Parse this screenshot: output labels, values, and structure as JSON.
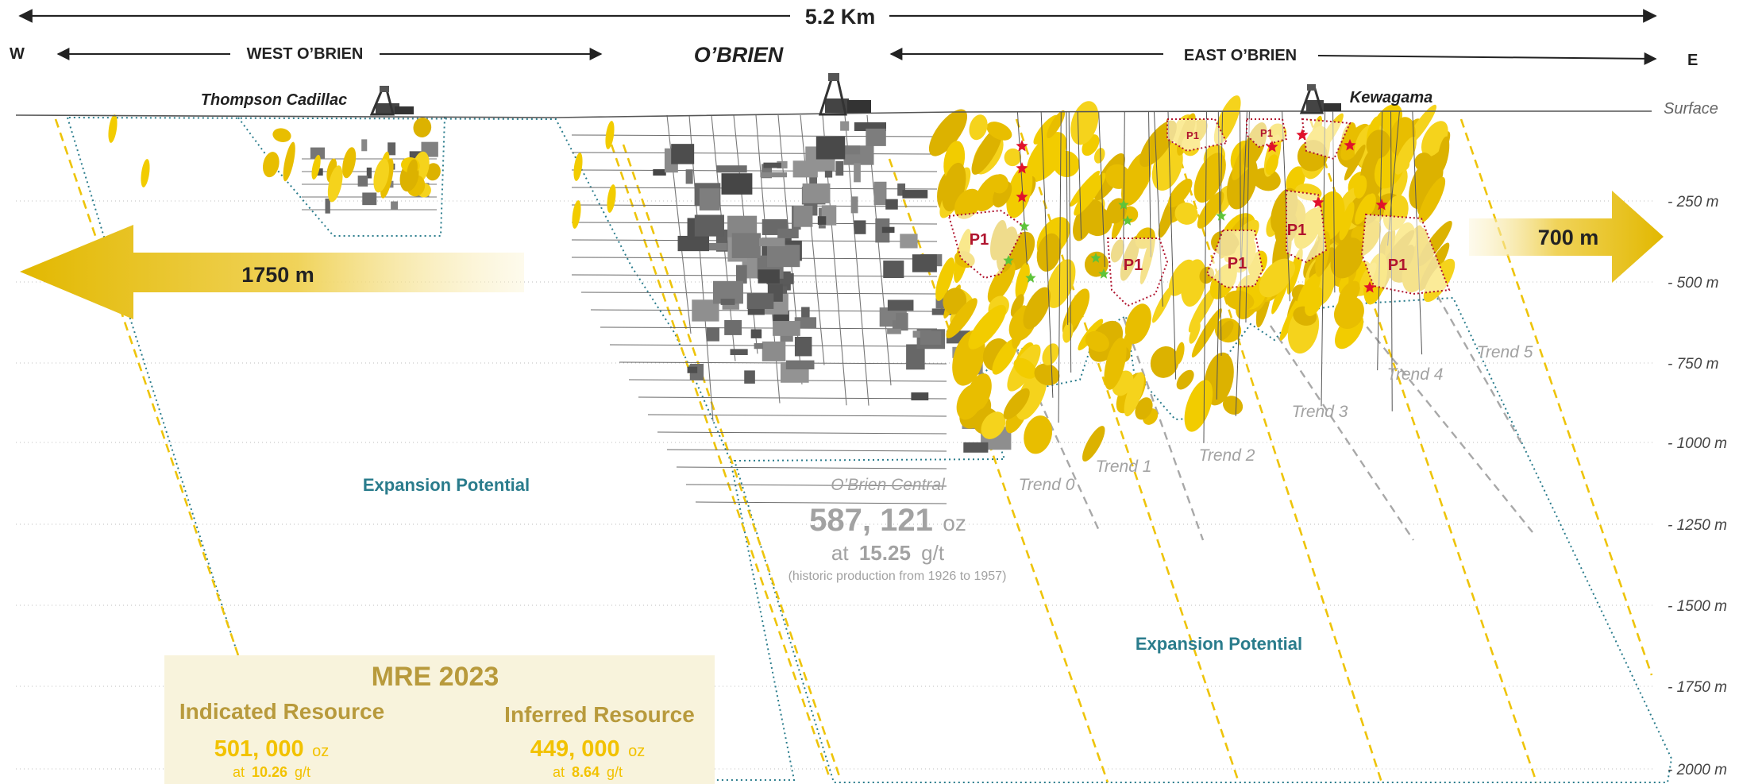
{
  "header": {
    "total_width": "5.2 Km",
    "west_end": "W",
    "east_end": "E",
    "west_zone": "WEST O’BRIEN",
    "central_zone": "O’BRIEN",
    "east_zone": "EAST O’BRIEN"
  },
  "headframes": {
    "thompson": "Thompson Cadillac",
    "kewagama": "Kewagama"
  },
  "depth_axis": {
    "surface": "Surface",
    "ticks": [
      "- 250 m",
      "- 500 m",
      "- 750 m",
      "- 1000 m",
      "- 1250 m",
      "- 1500 m",
      "- 1750 m",
      "- 2000 m"
    ]
  },
  "arrows": {
    "west_extent": "1750 m",
    "east_extent": "700 m"
  },
  "zones": {
    "expansion_west": "Expansion Potential",
    "expansion_east": "Expansion Potential",
    "p1_label": "P1"
  },
  "trends": [
    "Trend 0",
    "Trend 1",
    "Trend 2",
    "Trend 3",
    "Trend 4",
    "Trend 5"
  ],
  "obrien_central": {
    "title": "O’Brien Central",
    "ounces": "587, 121",
    "oz_unit": "oz",
    "at_word": "at",
    "grade": "15.25",
    "grade_unit": "g/t",
    "note": "(historic production from 1926 to 1957)"
  },
  "mre": {
    "title": "MRE 2023",
    "indicated": {
      "label": "Indicated Resource",
      "ounces": "501, 000",
      "oz_unit": "oz",
      "at_word": "at",
      "grade": "10.26",
      "grade_unit": "g/t"
    },
    "inferred": {
      "label": "Inferred  Resource",
      "ounces": "449, 000",
      "oz_unit": "oz",
      "at_word": "at",
      "grade": "8.64",
      "grade_unit": "g/t"
    }
  },
  "colors": {
    "gold": "#f2cc00",
    "gold_text": "#b89a3c",
    "teal": "#2a7c8c",
    "p1_red": "#b0142e",
    "dark_text": "#222222",
    "grey_text": "#a2a2a2",
    "mre_bg": "#f8f3dc"
  }
}
